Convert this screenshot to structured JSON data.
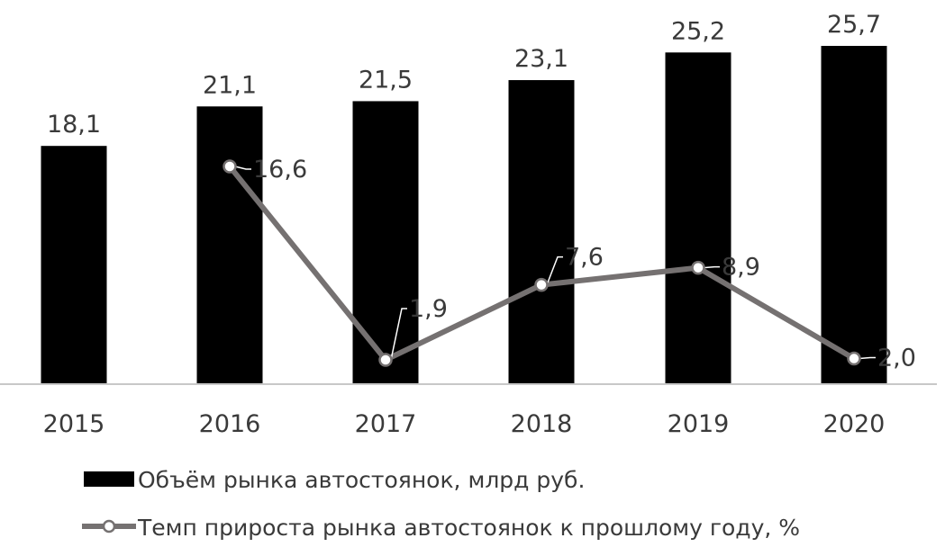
{
  "chart_data": {
    "type": "bar",
    "title": "",
    "xlabel": "",
    "ylabel": "",
    "categories": [
      "2015",
      "2016",
      "2017",
      "2018",
      "2019",
      "2020"
    ],
    "series": [
      {
        "name": "Объём рынка автостоянок, млрд руб.",
        "type": "bar",
        "color": "#000000",
        "values": [
          18.1,
          21.1,
          21.5,
          23.1,
          25.2,
          25.7
        ],
        "labels": [
          "18,1",
          "21,1",
          "21,5",
          "23,1",
          "25,2",
          "25,7"
        ]
      },
      {
        "name": "Темп прироста рынка автостоянок к прошлому году, %",
        "type": "line",
        "color": "#757171",
        "marker": "circle-open",
        "values": [
          null,
          16.6,
          1.9,
          7.6,
          8.9,
          2.0
        ],
        "labels": [
          "",
          "16,6",
          "1,9",
          "7,6",
          "8,9",
          "2,0"
        ]
      }
    ],
    "bar_ylim": [
      0,
      25.7
    ],
    "line_ylim": [
      0,
      16.6
    ],
    "grid": false,
    "legend_position": "bottom"
  }
}
